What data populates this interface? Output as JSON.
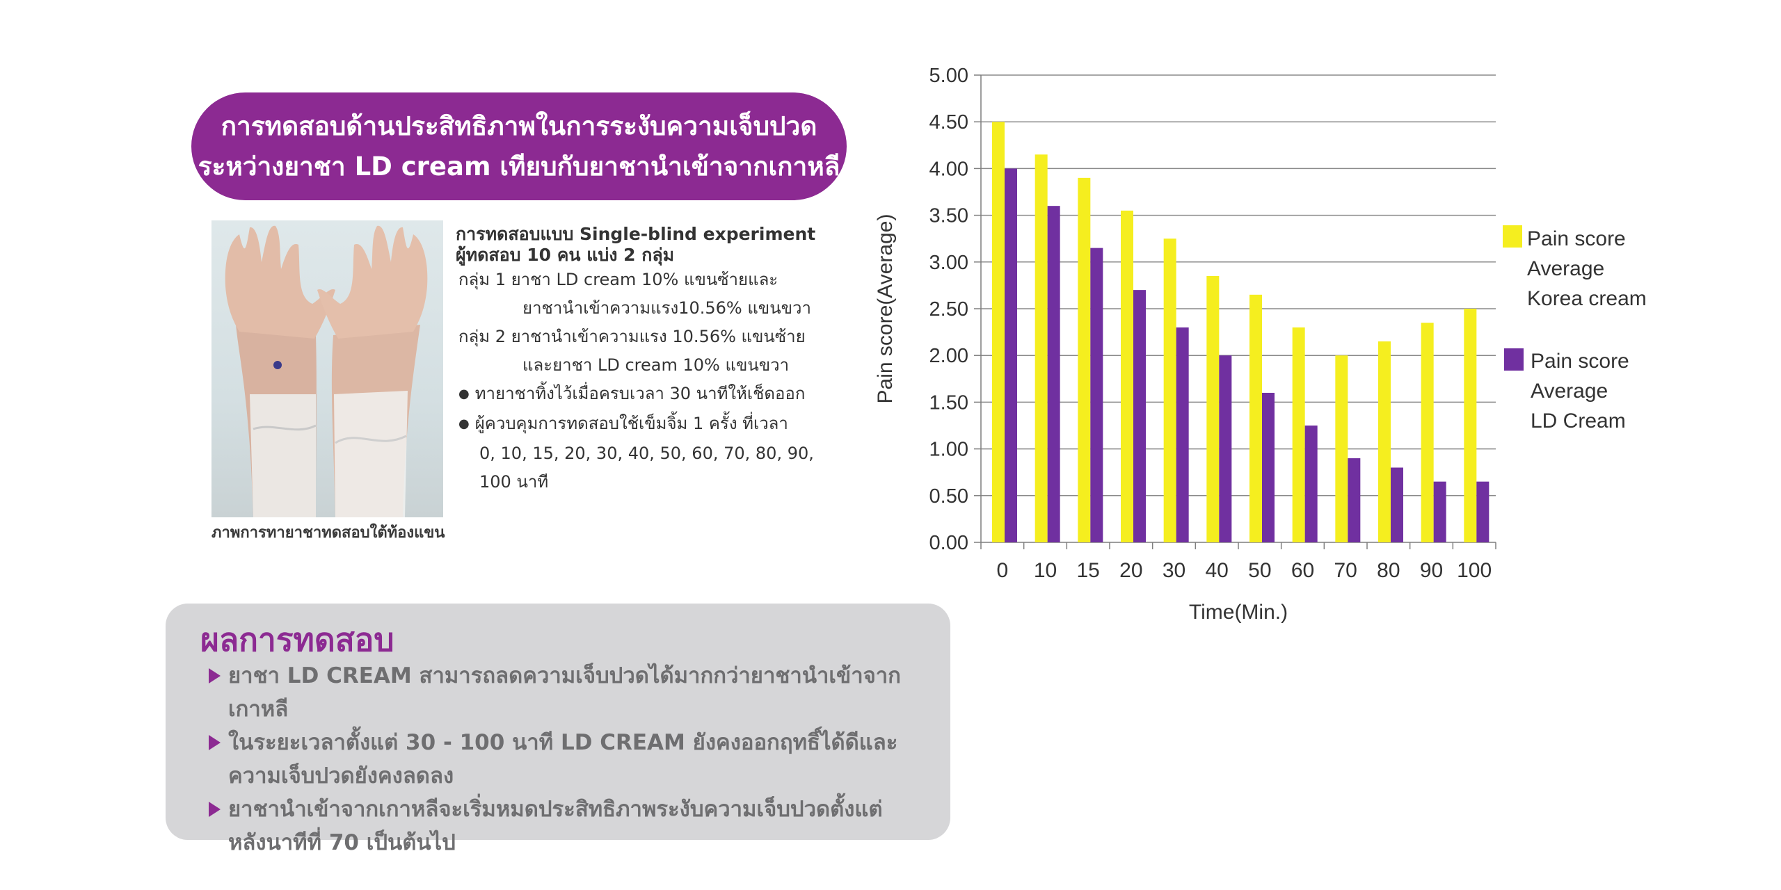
{
  "banner": {
    "line1": "การทดสอบด้านประสิทธิภาพในการระงับความเจ็บปวด",
    "line2": "ระหว่างยาชา LD cream เทียบกับยาชานำเข้าจากเกาหลี"
  },
  "photo": {
    "caption": "ภาพการทายาชาทดสอบใต้ท้องแขน"
  },
  "method": {
    "head1": "การทดสอบแบบ Single-blind experiment",
    "head2": "ผู้ทดสอบ 10 คน แบ่ง 2 กลุ่ม",
    "g1_a": "กลุ่ม 1   ยาชา LD cream 10% แขนซ้ายและ",
    "g1_b": "ยาชานำเข้าความแรง10.56% แขนขวา",
    "g2_a": "กลุ่ม 2   ยาชานำเข้าความแรง 10.56% แขนซ้าย",
    "g2_b": "และยาชา LD cream 10% แขนขวา",
    "b1": "ทายาชาทิ้งไว้เมื่อครบเวลา 30 นาทีให้เช็ดออก",
    "b2_a": "ผู้ควบคุมการทดสอบใช้เข็มจิ้ม 1 ครั้ง ที่เวลา",
    "b2_b": "0, 10, 15, 20, 30, 40, 50, 60, 70, 80, 90,",
    "b2_c": "100 นาที"
  },
  "results": {
    "title": "ผลการทดสอบ",
    "item1": "ยาชา LD CREAM สามารถลดความเจ็บปวดได้มากกว่ายาชานำเข้าจากเกาหลี",
    "item2_a": "ในระยะเวลาตั้งแต่ 30 - 100 นาที LD CREAM ยังคงออกฤทธิ์ได้ดีและ",
    "item2_b": "ความเจ็บปวดยังคงลดลง",
    "item3_a": "ยาชานำเข้าจากเกาหลีจะเริ่มหมดประสิทธิภาพระงับความเจ็บปวดตั้งแต่",
    "item3_b": "หลังนาทีที่ 70 เป็นต้นไป"
  },
  "legend": {
    "korea": [
      "Pain score",
      "Average",
      "Korea cream"
    ],
    "ld": [
      "Pain score",
      "Average",
      "LD Cream"
    ]
  },
  "colors": {
    "brand": "#8c2a92",
    "korea": "#f5ee1f",
    "ld": "#7030a0",
    "results_bg": "#d6d6d8"
  },
  "chart_data": {
    "type": "bar",
    "categories": [
      "0",
      "10",
      "15",
      "20",
      "30",
      "40",
      "50",
      "60",
      "70",
      "80",
      "90",
      "100"
    ],
    "series": [
      {
        "name": "Pain score Average Korea cream",
        "values": [
          4.5,
          4.15,
          3.9,
          3.55,
          3.25,
          2.85,
          2.65,
          2.3,
          2.0,
          2.15,
          2.35,
          2.5
        ]
      },
      {
        "name": "Pain score Average LD Cream",
        "values": [
          4.0,
          3.6,
          3.15,
          2.7,
          2.3,
          2.0,
          1.6,
          1.25,
          0.9,
          0.8,
          0.65,
          0.65
        ]
      }
    ],
    "yticks": [
      "0.00",
      "0.50",
      "1.00",
      "1.50",
      "2.00",
      "2.50",
      "3.00",
      "3.50",
      "4.00",
      "4.50",
      "5.00"
    ],
    "xlabel": "Time(Min.)",
    "ylabel": "Pain score(Average)",
    "ylim": [
      0,
      5
    ],
    "grid": true,
    "legend_position": "right"
  }
}
